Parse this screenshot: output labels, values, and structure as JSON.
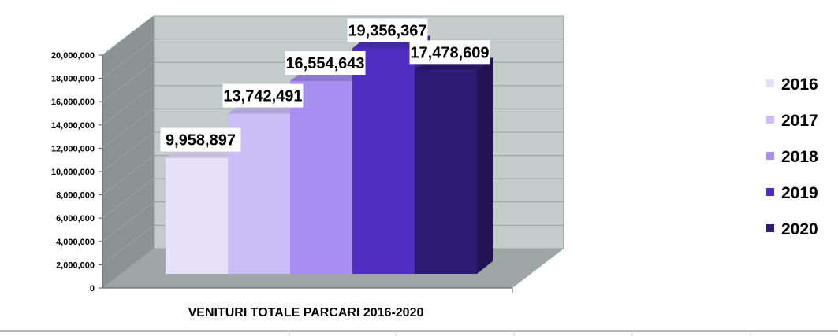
{
  "chart_data": {
    "type": "bar",
    "style": "3d-column",
    "categories": [
      "VENITURI TOTALE PARCARI 2016-2020"
    ],
    "series": [
      {
        "name": "2016",
        "value": 9958897,
        "label": "9,958,897",
        "color": "#e6e0fb"
      },
      {
        "name": "2017",
        "value": 13742491,
        "label": "13,742,491",
        "color": "#cbbdf6"
      },
      {
        "name": "2018",
        "value": 16554643,
        "label": "16,554,643",
        "color": "#a88ef1"
      },
      {
        "name": "2019",
        "value": 19356367,
        "label": "19,356,367",
        "color": "#4f2dc0"
      },
      {
        "name": "2020",
        "value": 17478609,
        "label": "17,478,609",
        "color": "#2c1a73"
      }
    ],
    "ylim": [
      0,
      20000000
    ],
    "yticks": [
      0,
      2000000,
      4000000,
      6000000,
      8000000,
      10000000,
      12000000,
      14000000,
      16000000,
      18000000,
      20000000
    ],
    "ytick_labels": [
      "0",
      "2,000,000",
      "4,000,000",
      "6,000,000",
      "8,000,000",
      "10,000,000",
      "12,000,000",
      "14,000,000",
      "16,000,000",
      "18,000,000",
      "20,000,000"
    ],
    "grid": true,
    "legend_position": "right",
    "wall_color": "#c4cbcb",
    "floor_color": "#9ea6a6",
    "side_wall_color": "#8a9292"
  }
}
